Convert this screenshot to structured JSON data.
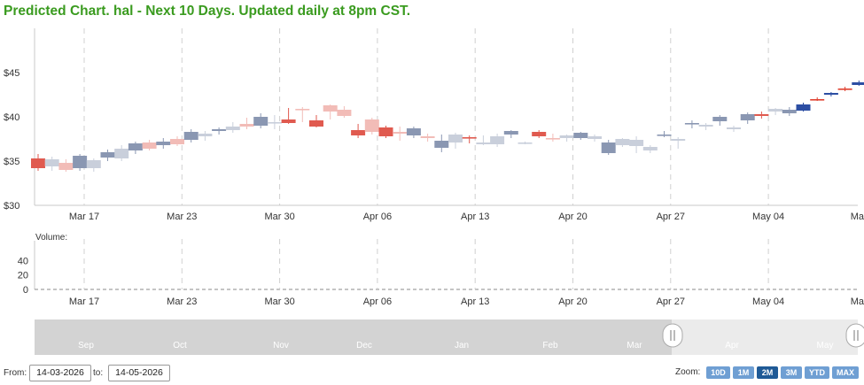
{
  "title": "Predicted Chart. hal - Next 10 Days. Updated daily at 8pm CST.",
  "volume_label": "Volume:",
  "range": {
    "from_label": "From:",
    "from_value": "14-03-2026",
    "to_label": "to:",
    "to_value": "14-05-2026"
  },
  "zoom": {
    "label": "Zoom:",
    "buttons": [
      "10D",
      "1M",
      "2M",
      "3M",
      "YTD",
      "MAX"
    ],
    "active": "2M"
  },
  "navigator_months": [
    "Sep",
    "Oct",
    "Nov",
    "Dec",
    "Jan",
    "Feb",
    "Mar",
    "Apr",
    "May"
  ],
  "colors": {
    "up": "#8a97b2",
    "down": "#e05a4f",
    "up_light": "#c9cfdb",
    "down_light": "#f2bcb7",
    "pred_up": "#2c4ea3",
    "pred_down": "#e0402f",
    "grid": "#d0d0d0"
  },
  "chart_data": {
    "type": "candlestick",
    "x_tick_labels": [
      "Mar 17",
      "Mar 23",
      "Mar 30",
      "Apr 06",
      "Apr 13",
      "Apr 20",
      "Apr 27",
      "May 04",
      "May 11"
    ],
    "price_axis": {
      "ticks": [
        30,
        35,
        40,
        45
      ],
      "tick_labels": [
        "$30",
        "$35",
        "$40",
        "$45"
      ],
      "range": [
        30,
        50
      ]
    },
    "volume_axis": {
      "ticks": [
        0,
        20,
        40
      ],
      "range": [
        0,
        55
      ]
    },
    "series": [
      {
        "name": "Actual",
        "candles": [
          {
            "open": 35.3,
            "high": 35.8,
            "low": 33.9,
            "close": 34.2,
            "style": "down"
          },
          {
            "open": 34.4,
            "high": 35.5,
            "low": 33.9,
            "close": 35.2,
            "style": "up_light"
          },
          {
            "open": 34.8,
            "high": 35.2,
            "low": 33.8,
            "close": 34.0,
            "style": "down_light"
          },
          {
            "open": 34.2,
            "high": 35.8,
            "low": 33.9,
            "close": 35.6,
            "style": "up"
          },
          {
            "open": 34.2,
            "high": 35.3,
            "low": 33.8,
            "close": 35.1,
            "style": "up_light"
          },
          {
            "open": 35.4,
            "high": 36.3,
            "low": 35.0,
            "close": 36.0,
            "style": "up"
          },
          {
            "open": 35.3,
            "high": 36.8,
            "low": 35.0,
            "close": 36.4,
            "style": "up_light"
          },
          {
            "open": 36.2,
            "high": 37.2,
            "low": 35.8,
            "close": 37.0,
            "style": "up"
          },
          {
            "open": 36.4,
            "high": 37.4,
            "low": 36.2,
            "close": 37.1,
            "style": "down_light"
          },
          {
            "open": 36.8,
            "high": 37.6,
            "low": 36.4,
            "close": 37.2,
            "style": "up"
          },
          {
            "open": 37.5,
            "high": 37.8,
            "low": 36.7,
            "close": 36.9,
            "style": "down_light"
          },
          {
            "open": 37.4,
            "high": 38.6,
            "low": 37.1,
            "close": 38.3,
            "style": "up"
          },
          {
            "open": 38.1,
            "high": 38.4,
            "low": 37.3,
            "close": 37.8,
            "style": "up_light"
          },
          {
            "open": 38.4,
            "high": 38.8,
            "low": 38.0,
            "close": 38.6,
            "style": "up"
          },
          {
            "open": 38.5,
            "high": 39.4,
            "low": 38.2,
            "close": 38.9,
            "style": "up_light"
          },
          {
            "open": 39.2,
            "high": 39.9,
            "low": 38.6,
            "close": 38.9,
            "style": "down_light"
          },
          {
            "open": 39.0,
            "high": 40.4,
            "low": 38.7,
            "close": 40.0,
            "style": "up"
          },
          {
            "open": 39.4,
            "high": 40.2,
            "low": 38.6,
            "close": 39.3,
            "style": "up_light"
          },
          {
            "open": 39.7,
            "high": 41.0,
            "low": 39.2,
            "close": 39.3,
            "style": "down"
          },
          {
            "open": 40.9,
            "high": 41.1,
            "low": 39.4,
            "close": 40.8,
            "style": "down_light"
          },
          {
            "open": 39.6,
            "high": 40.2,
            "low": 38.8,
            "close": 38.9,
            "style": "down"
          },
          {
            "open": 40.6,
            "high": 41.4,
            "low": 39.7,
            "close": 41.3,
            "style": "down_light"
          },
          {
            "open": 40.8,
            "high": 41.2,
            "low": 39.9,
            "close": 40.1,
            "style": "down_light"
          },
          {
            "open": 38.5,
            "high": 39.2,
            "low": 37.6,
            "close": 37.9,
            "style": "down"
          },
          {
            "open": 39.7,
            "high": 39.9,
            "low": 38.0,
            "close": 38.3,
            "style": "down_light"
          },
          {
            "open": 38.8,
            "high": 39.0,
            "low": 37.6,
            "close": 37.8,
            "style": "down"
          },
          {
            "open": 38.3,
            "high": 38.9,
            "low": 37.3,
            "close": 38.1,
            "style": "down_light"
          },
          {
            "open": 37.9,
            "high": 38.9,
            "low": 37.6,
            "close": 38.7,
            "style": "up"
          },
          {
            "open": 37.6,
            "high": 38.1,
            "low": 37.2,
            "close": 37.8,
            "style": "down_light"
          },
          {
            "open": 36.5,
            "high": 38.0,
            "low": 36.0,
            "close": 37.3,
            "style": "up"
          },
          {
            "open": 37.1,
            "high": 38.2,
            "low": 36.4,
            "close": 38.0,
            "style": "up_light"
          },
          {
            "open": 37.6,
            "high": 37.9,
            "low": 37.0,
            "close": 37.7,
            "style": "down"
          },
          {
            "open": 37.1,
            "high": 37.9,
            "low": 36.8,
            "close": 36.9,
            "style": "up_light"
          },
          {
            "open": 36.9,
            "high": 38.1,
            "low": 36.6,
            "close": 37.8,
            "style": "up_light"
          },
          {
            "open": 38.0,
            "high": 38.5,
            "low": 37.6,
            "close": 38.4,
            "style": "up"
          },
          {
            "open": 37.0,
            "high": 37.2,
            "low": 36.9,
            "close": 37.1,
            "style": "up_light"
          },
          {
            "open": 38.3,
            "high": 38.5,
            "low": 37.6,
            "close": 37.8,
            "style": "down"
          },
          {
            "open": 37.5,
            "high": 38.1,
            "low": 37.2,
            "close": 37.6,
            "style": "down_light"
          },
          {
            "open": 37.6,
            "high": 38.0,
            "low": 37.2,
            "close": 37.9,
            "style": "up_light"
          },
          {
            "open": 37.6,
            "high": 38.3,
            "low": 37.4,
            "close": 38.2,
            "style": "up"
          },
          {
            "open": 37.5,
            "high": 38.0,
            "low": 37.2,
            "close": 37.8,
            "style": "up_light"
          },
          {
            "open": 35.9,
            "high": 37.4,
            "low": 35.7,
            "close": 37.1,
            "style": "up"
          },
          {
            "open": 36.8,
            "high": 37.6,
            "low": 36.6,
            "close": 37.5,
            "style": "up_light"
          },
          {
            "open": 36.7,
            "high": 37.8,
            "low": 35.9,
            "close": 37.4,
            "style": "up_light"
          },
          {
            "open": 36.2,
            "high": 36.8,
            "low": 35.9,
            "close": 36.6,
            "style": "up_light"
          },
          {
            "open": 37.9,
            "high": 38.4,
            "low": 37.7,
            "close": 38.0,
            "style": "up"
          },
          {
            "open": 37.3,
            "high": 37.7,
            "low": 36.4,
            "close": 37.5,
            "style": "up_light"
          },
          {
            "open": 39.2,
            "high": 39.6,
            "low": 38.7,
            "close": 39.3,
            "style": "up"
          },
          {
            "open": 38.9,
            "high": 39.3,
            "low": 38.5,
            "close": 39.1,
            "style": "up_light"
          },
          {
            "open": 39.5,
            "high": 40.2,
            "low": 39.0,
            "close": 40.0,
            "style": "up"
          },
          {
            "open": 38.6,
            "high": 39.0,
            "low": 38.3,
            "close": 38.8,
            "style": "up_light"
          },
          {
            "open": 39.6,
            "high": 40.5,
            "low": 39.2,
            "close": 40.3,
            "style": "up"
          },
          {
            "open": 40.3,
            "high": 40.6,
            "low": 39.8,
            "close": 40.1,
            "style": "down"
          },
          {
            "open": 40.6,
            "high": 41.0,
            "low": 40.2,
            "close": 40.9,
            "style": "up_light"
          },
          {
            "open": 40.4,
            "high": 41.1,
            "low": 40.1,
            "close": 40.8,
            "style": "up"
          }
        ]
      },
      {
        "name": "Predicted",
        "candles": [
          {
            "open": 40.7,
            "high": 41.6,
            "low": 40.6,
            "close": 41.4,
            "style": "pred_up"
          },
          {
            "open": 41.9,
            "high": 42.2,
            "low": 41.8,
            "close": 42.0,
            "style": "pred_down"
          },
          {
            "open": 42.5,
            "high": 42.8,
            "low": 42.3,
            "close": 42.7,
            "style": "pred_up"
          },
          {
            "open": 43.2,
            "high": 43.4,
            "low": 42.9,
            "close": 43.1,
            "style": "pred_down"
          },
          {
            "open": 43.6,
            "high": 44.1,
            "low": 43.5,
            "close": 43.9,
            "style": "pred_up"
          },
          {
            "open": 44.2,
            "high": 44.8,
            "low": 44.0,
            "close": 44.4,
            "style": "pred_up"
          },
          {
            "open": 45.0,
            "high": 45.2,
            "low": 44.9,
            "close": 45.0,
            "style": "pred_down"
          },
          {
            "open": 45.6,
            "high": 45.9,
            "low": 45.4,
            "close": 45.7,
            "style": "pred_up"
          },
          {
            "open": 46.2,
            "high": 46.5,
            "low": 45.9,
            "close": 46.1,
            "style": "pred_down"
          },
          {
            "open": 46.7,
            "high": 46.8,
            "low": 46.0,
            "close": 46.5,
            "style": "pred_down"
          }
        ]
      }
    ]
  }
}
